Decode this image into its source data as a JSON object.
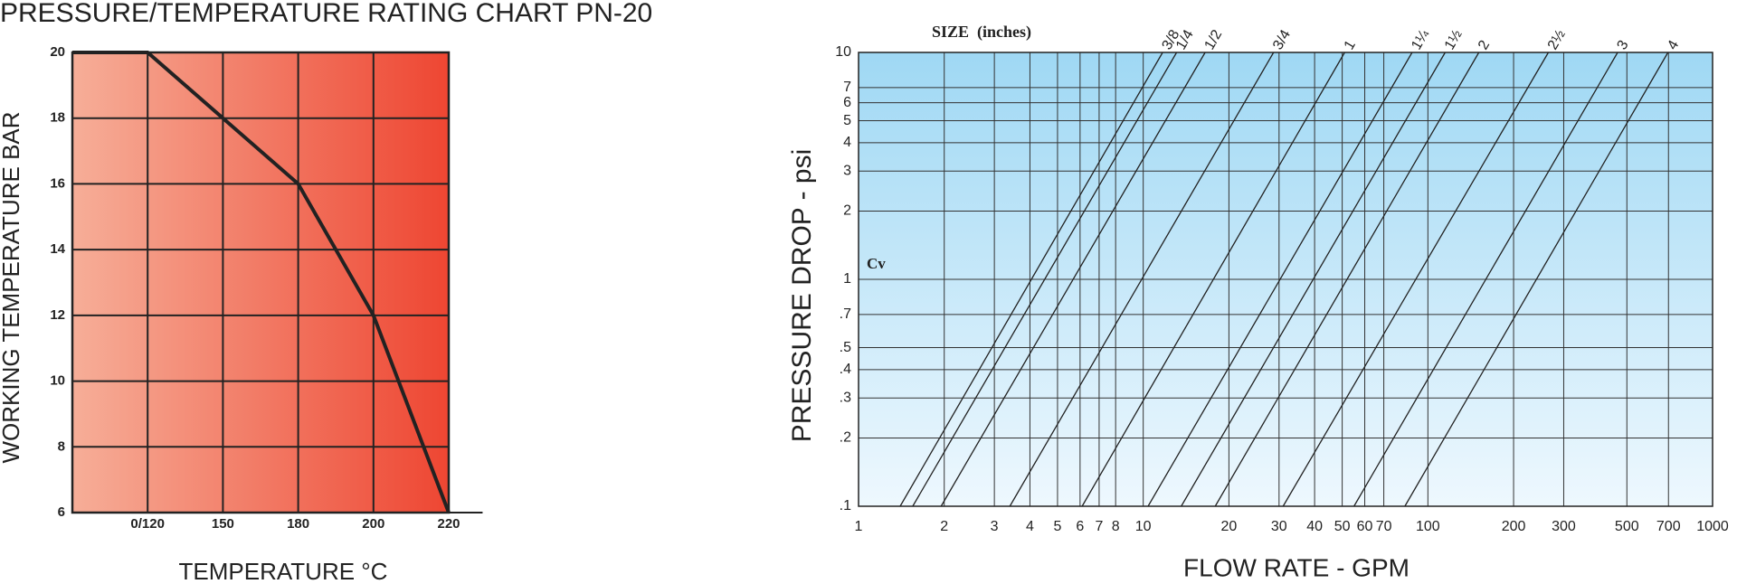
{
  "chart_data": [
    {
      "type": "line",
      "title": "PRESSURE/TEMPERATURE RATING CHART PN-20",
      "y_label": "WORKING TEMPERATURE BAR",
      "x_label": "TEMPERATURE °C",
      "categories": [
        null,
        "0/120",
        "150",
        "180",
        "200",
        "220"
      ],
      "series": [
        {
          "name": null,
          "color": "#222222",
          "values": [
            20,
            20,
            18,
            16,
            12,
            6
          ]
        }
      ],
      "ylim": [
        6,
        20
      ],
      "yticks": [
        6,
        8,
        10,
        12,
        14,
        16,
        18,
        20
      ],
      "grid": true
    },
    {
      "type": "line",
      "xscale": "log",
      "yscale": "log",
      "y_label": "PRESSURE DROP - psi",
      "x_label": "FLOW RATE - GPM",
      "size_title": "SIZE  (inches)",
      "annotation": "Cv",
      "xlim": [
        1,
        1000
      ],
      "ylim": [
        0.1,
        10
      ],
      "xticks": [
        1,
        2,
        3,
        4,
        5,
        6,
        7,
        8,
        10,
        20,
        30,
        40,
        50,
        60,
        70,
        100,
        200,
        300,
        500,
        700,
        1000
      ],
      "yticks": [
        {
          "value": 0.1,
          "label": ".1"
        },
        {
          "value": 0.2,
          "label": ".2"
        },
        {
          "value": 0.3,
          "label": ".3"
        },
        {
          "value": 0.4,
          "label": ".4"
        },
        {
          "value": 0.5,
          "label": ".5"
        },
        {
          "value": 0.7,
          "label": ".7"
        },
        1,
        2,
        3,
        4,
        5,
        6,
        7,
        10
      ],
      "grid": true,
      "series": [
        {
          "name": "3/8",
          "color": "#222222",
          "x": [
            1.4,
            11.7
          ],
          "values": [
            0.1,
            10
          ]
        },
        {
          "name": "1/4",
          "color": "#222222",
          "x": [
            1.55,
            13.1
          ],
          "values": [
            0.1,
            10
          ]
        },
        {
          "name": "1/2",
          "color": "#222222",
          "x": [
            1.95,
            16.5
          ],
          "values": [
            0.1,
            10
          ]
        },
        {
          "name": "3/4",
          "color": "#222222",
          "x": [
            3.4,
            28.7
          ],
          "values": [
            0.1,
            10
          ]
        },
        {
          "name": "1",
          "color": "#222222",
          "x": [
            6.1,
            51
          ],
          "values": [
            0.1,
            10
          ]
        },
        {
          "name": "1¼",
          "color": "#222222",
          "x": [
            10.4,
            88
          ],
          "values": [
            0.1,
            10
          ]
        },
        {
          "name": "1½",
          "color": "#222222",
          "x": [
            13.6,
            115
          ],
          "values": [
            0.1,
            10
          ]
        },
        {
          "name": "2",
          "color": "#222222",
          "x": [
            17.9,
            151
          ],
          "values": [
            0.1,
            10
          ]
        },
        {
          "name": "2½",
          "color": "#222222",
          "x": [
            31,
            265
          ],
          "values": [
            0.1,
            10
          ]
        },
        {
          "name": "3",
          "color": "#222222",
          "x": [
            55,
            464
          ],
          "values": [
            0.1,
            10
          ]
        },
        {
          "name": "4",
          "color": "#222222",
          "x": [
            83,
            697
          ],
          "values": [
            0.1,
            10
          ]
        }
      ]
    }
  ]
}
